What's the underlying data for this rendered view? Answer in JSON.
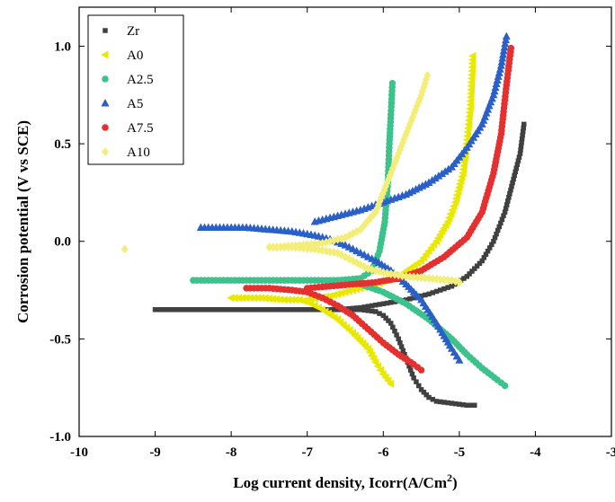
{
  "chart_data": {
    "type": "scatter",
    "title": "",
    "xlabel": "Log current density, Icorr(A/Cm",
    "xlabel_sup": "2",
    "xlabel_close": ")",
    "ylabel": "Corrosion potential (V vs SCE)",
    "xlim": [
      -10,
      -3
    ],
    "ylim": [
      -1.0,
      1.2
    ],
    "x_ticks": [
      "-10",
      "-9",
      "-8",
      "-7",
      "-6",
      "-5",
      "-4",
      "-3"
    ],
    "y_ticks": [
      "-1.0",
      "-0.5",
      "0.0",
      "0.5",
      "1.0"
    ],
    "legend_position": "top-left",
    "grid": false,
    "series": [
      {
        "name": "Zr",
        "color": "#404040",
        "marker": "square",
        "points": [
          [
            -9.0,
            -0.35
          ],
          [
            -8.5,
            -0.35
          ],
          [
            -8.0,
            -0.35
          ],
          [
            -7.5,
            -0.35
          ],
          [
            -7.0,
            -0.35
          ],
          [
            -6.6,
            -0.35
          ],
          [
            -6.3,
            -0.35
          ],
          [
            -6.1,
            -0.36
          ],
          [
            -6.0,
            -0.38
          ],
          [
            -5.9,
            -0.42
          ],
          [
            -5.8,
            -0.5
          ],
          [
            -5.7,
            -0.6
          ],
          [
            -5.6,
            -0.7
          ],
          [
            -5.5,
            -0.76
          ],
          [
            -5.4,
            -0.8
          ],
          [
            -5.3,
            -0.82
          ],
          [
            -5.1,
            -0.83
          ],
          [
            -4.9,
            -0.84
          ],
          [
            -4.8,
            -0.84
          ],
          [
            -6.6,
            -0.35
          ],
          [
            -6.3,
            -0.34
          ],
          [
            -6.0,
            -0.32
          ],
          [
            -5.7,
            -0.3
          ],
          [
            -5.4,
            -0.27
          ],
          [
            -5.1,
            -0.23
          ],
          [
            -4.9,
            -0.18
          ],
          [
            -4.7,
            -0.1
          ],
          [
            -4.55,
            0.0
          ],
          [
            -4.4,
            0.15
          ],
          [
            -4.3,
            0.3
          ],
          [
            -4.2,
            0.45
          ],
          [
            -4.15,
            0.6
          ]
        ]
      },
      {
        "name": "A0",
        "color": "#e8e800",
        "marker": "triangle-left",
        "points": [
          [
            -8.0,
            -0.29
          ],
          [
            -7.6,
            -0.29
          ],
          [
            -7.3,
            -0.3
          ],
          [
            -7.1,
            -0.3
          ],
          [
            -7.0,
            -0.31
          ],
          [
            -6.8,
            -0.35
          ],
          [
            -6.6,
            -0.4
          ],
          [
            -6.4,
            -0.47
          ],
          [
            -6.2,
            -0.55
          ],
          [
            -6.1,
            -0.62
          ],
          [
            -6.0,
            -0.68
          ],
          [
            -5.9,
            -0.73
          ],
          [
            -7.0,
            -0.3
          ],
          [
            -6.7,
            -0.28
          ],
          [
            -6.4,
            -0.25
          ],
          [
            -6.1,
            -0.22
          ],
          [
            -5.8,
            -0.18
          ],
          [
            -5.5,
            -0.1
          ],
          [
            -5.3,
            0.0
          ],
          [
            -5.15,
            0.1
          ],
          [
            -5.05,
            0.2
          ],
          [
            -4.95,
            0.35
          ],
          [
            -4.9,
            0.5
          ],
          [
            -4.85,
            0.7
          ],
          [
            -4.82,
            0.95
          ]
        ]
      },
      {
        "name": "A2.5",
        "color": "#3cc28b",
        "marker": "circle",
        "points": [
          [
            -8.5,
            -0.2
          ],
          [
            -8.0,
            -0.2
          ],
          [
            -7.5,
            -0.2
          ],
          [
            -7.0,
            -0.2
          ],
          [
            -6.6,
            -0.2
          ],
          [
            -6.3,
            -0.19
          ],
          [
            -6.15,
            -0.15
          ],
          [
            -6.05,
            -0.05
          ],
          [
            -5.98,
            0.1
          ],
          [
            -5.94,
            0.3
          ],
          [
            -5.92,
            0.5
          ],
          [
            -5.9,
            0.65
          ],
          [
            -5.88,
            0.81
          ],
          [
            -6.6,
            -0.2
          ],
          [
            -6.3,
            -0.22
          ],
          [
            -6.0,
            -0.26
          ],
          [
            -5.7,
            -0.32
          ],
          [
            -5.4,
            -0.4
          ],
          [
            -5.1,
            -0.5
          ],
          [
            -4.9,
            -0.58
          ],
          [
            -4.7,
            -0.65
          ],
          [
            -4.5,
            -0.71
          ],
          [
            -4.4,
            -0.74
          ]
        ]
      },
      {
        "name": "A5",
        "color": "#2a5fc8",
        "marker": "triangle-up",
        "points": [
          [
            -8.4,
            0.07
          ],
          [
            -7.8,
            0.07
          ],
          [
            -7.5,
            0.06
          ],
          [
            -7.2,
            0.05
          ],
          [
            -6.9,
            0.03
          ],
          [
            -6.7,
            0.01
          ],
          [
            -6.5,
            -0.02
          ],
          [
            -6.3,
            -0.06
          ],
          [
            -6.1,
            -0.1
          ],
          [
            -5.9,
            -0.15
          ],
          [
            -5.7,
            -0.22
          ],
          [
            -5.5,
            -0.3
          ],
          [
            -5.3,
            -0.42
          ],
          [
            -5.1,
            -0.55
          ],
          [
            -5.0,
            -0.61
          ],
          [
            -6.9,
            0.1
          ],
          [
            -6.6,
            0.13
          ],
          [
            -6.3,
            0.16
          ],
          [
            -6.0,
            0.2
          ],
          [
            -5.7,
            0.24
          ],
          [
            -5.4,
            0.3
          ],
          [
            -5.1,
            0.38
          ],
          [
            -4.9,
            0.48
          ],
          [
            -4.7,
            0.6
          ],
          [
            -4.55,
            0.75
          ],
          [
            -4.45,
            0.9
          ],
          [
            -4.38,
            1.05
          ]
        ]
      },
      {
        "name": "A7.5",
        "color": "#e53030",
        "marker": "circle",
        "points": [
          [
            -7.8,
            -0.24
          ],
          [
            -7.5,
            -0.24
          ],
          [
            -7.2,
            -0.25
          ],
          [
            -7.0,
            -0.26
          ],
          [
            -6.8,
            -0.29
          ],
          [
            -6.6,
            -0.33
          ],
          [
            -6.4,
            -0.38
          ],
          [
            -6.2,
            -0.45
          ],
          [
            -6.0,
            -0.52
          ],
          [
            -5.8,
            -0.58
          ],
          [
            -5.6,
            -0.63
          ],
          [
            -5.5,
            -0.66
          ],
          [
            -7.0,
            -0.24
          ],
          [
            -6.7,
            -0.23
          ],
          [
            -6.4,
            -0.22
          ],
          [
            -6.1,
            -0.21
          ],
          [
            -5.8,
            -0.19
          ],
          [
            -5.5,
            -0.15
          ],
          [
            -5.2,
            -0.08
          ],
          [
            -4.9,
            0.02
          ],
          [
            -4.7,
            0.15
          ],
          [
            -4.55,
            0.35
          ],
          [
            -4.45,
            0.55
          ],
          [
            -4.38,
            0.8
          ],
          [
            -4.32,
            0.99
          ]
        ]
      },
      {
        "name": "A10",
        "color": "#f3ee7a",
        "marker": "diamond",
        "points": [
          [
            -9.4,
            -0.04
          ],
          [
            -7.5,
            -0.03
          ],
          [
            -7.2,
            -0.03
          ],
          [
            -6.9,
            -0.04
          ],
          [
            -6.6,
            -0.06
          ],
          [
            -6.4,
            -0.1
          ],
          [
            -6.2,
            -0.14
          ],
          [
            -6.0,
            -0.16
          ],
          [
            -5.7,
            -0.18
          ],
          [
            -5.4,
            -0.19
          ],
          [
            -5.1,
            -0.2
          ],
          [
            -5.0,
            -0.21
          ],
          [
            -7.4,
            -0.03
          ],
          [
            -7.1,
            -0.02
          ],
          [
            -6.8,
            -0.01
          ],
          [
            -6.5,
            0.02
          ],
          [
            -6.3,
            0.06
          ],
          [
            -6.1,
            0.15
          ],
          [
            -5.95,
            0.3
          ],
          [
            -5.8,
            0.45
          ],
          [
            -5.65,
            0.6
          ],
          [
            -5.5,
            0.75
          ],
          [
            -5.42,
            0.85
          ]
        ]
      }
    ]
  }
}
